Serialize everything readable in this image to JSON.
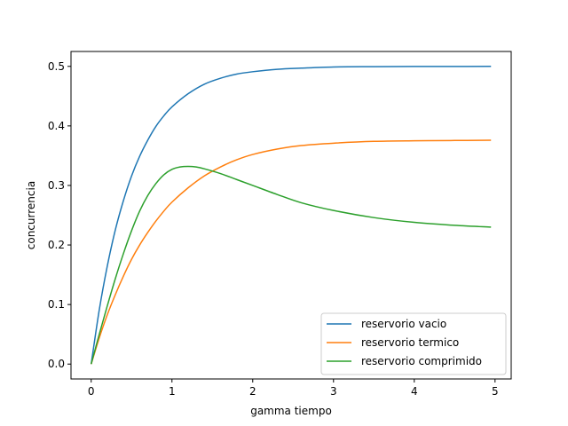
{
  "chart_data": {
    "type": "line",
    "xlabel": "gamma tiempo",
    "ylabel": "concurrencia",
    "xlim": [
      -0.25,
      5.2
    ],
    "ylim": [
      -0.025,
      0.525
    ],
    "xticks": [
      0,
      1,
      2,
      3,
      4,
      5
    ],
    "yticks": [
      0.0,
      0.1,
      0.2,
      0.3,
      0.4,
      0.5
    ],
    "xtick_labels": [
      "0",
      "1",
      "2",
      "3",
      "4",
      "5"
    ],
    "ytick_labels": [
      "0.0",
      "0.1",
      "0.2",
      "0.3",
      "0.4",
      "0.5"
    ],
    "grid": false,
    "legend_position": "lower-right",
    "series": [
      {
        "name": "reservorio vacio",
        "color": "#1f77b4",
        "x": [
          0,
          0.1,
          0.2,
          0.3,
          0.4,
          0.5,
          0.6,
          0.7,
          0.8,
          0.9,
          1.0,
          1.2,
          1.4,
          1.6,
          1.8,
          2.0,
          2.3,
          2.6,
          3.0,
          3.5,
          4.0,
          4.5,
          4.95
        ],
        "y": [
          0,
          0.091,
          0.165,
          0.226,
          0.275,
          0.316,
          0.349,
          0.376,
          0.399,
          0.417,
          0.432,
          0.454,
          0.47,
          0.48,
          0.487,
          0.491,
          0.495,
          0.497,
          0.499,
          0.4995,
          0.4998,
          0.4999,
          0.5
        ]
      },
      {
        "name": "reservorio termico",
        "color": "#ff7f0e",
        "x": [
          0,
          0.1,
          0.2,
          0.3,
          0.4,
          0.5,
          0.6,
          0.7,
          0.8,
          0.9,
          1.0,
          1.2,
          1.4,
          1.6,
          1.8,
          2.0,
          2.3,
          2.6,
          3.0,
          3.5,
          4.0,
          4.5,
          4.95
        ],
        "y": [
          0,
          0.044,
          0.083,
          0.117,
          0.148,
          0.176,
          0.2,
          0.221,
          0.24,
          0.257,
          0.272,
          0.296,
          0.316,
          0.331,
          0.343,
          0.352,
          0.361,
          0.367,
          0.371,
          0.374,
          0.375,
          0.3755,
          0.376
        ]
      },
      {
        "name": "reservorio comprimido",
        "color": "#2ca02c",
        "x": [
          0,
          0.1,
          0.2,
          0.3,
          0.4,
          0.5,
          0.6,
          0.7,
          0.8,
          0.9,
          1.0,
          1.1,
          1.2,
          1.3,
          1.4,
          1.6,
          1.8,
          2.0,
          2.3,
          2.6,
          3.0,
          3.5,
          4.0,
          4.5,
          4.95
        ],
        "y": [
          0,
          0.05,
          0.098,
          0.144,
          0.186,
          0.224,
          0.257,
          0.283,
          0.303,
          0.318,
          0.327,
          0.331,
          0.332,
          0.331,
          0.328,
          0.32,
          0.31,
          0.3,
          0.285,
          0.271,
          0.258,
          0.246,
          0.238,
          0.233,
          0.23
        ]
      }
    ]
  }
}
